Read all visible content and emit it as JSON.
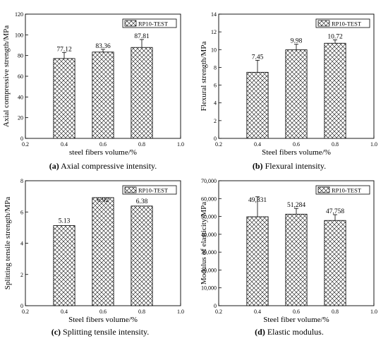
{
  "chart_data": [
    {
      "type": "bar",
      "categories": [
        "0.4",
        "0.6",
        "0.8"
      ],
      "x": [
        0.4,
        0.6,
        0.8
      ],
      "values": [
        77.12,
        83.36,
        87.81
      ],
      "value_labels": [
        "77.12",
        "83.36",
        "87.81"
      ],
      "error_upper": [
        83.0,
        86.0,
        95.5
      ],
      "series": [
        {
          "name": "RP10-TEST",
          "values": [
            77.12,
            83.36,
            87.81
          ]
        }
      ],
      "title": "",
      "xlabel": "steel fibers volume/%",
      "ylabel": "Axial compressive strength/MPa",
      "xlim": [
        0.2,
        1.0
      ],
      "ylim": [
        0,
        120
      ],
      "xticks": [
        "0.2",
        "0.4",
        "0.6",
        "0.8",
        "1.0"
      ],
      "yticks": [
        "0",
        "20",
        "40",
        "60",
        "80",
        "100",
        "120"
      ],
      "legend_position": "top-right",
      "grid": false,
      "caption_letter": "(a)",
      "caption_text": " Axial compressive intensity."
    },
    {
      "type": "bar",
      "categories": [
        "0.4",
        "0.6",
        "0.8"
      ],
      "x": [
        0.4,
        0.6,
        0.8
      ],
      "values": [
        7.45,
        9.98,
        10.72
      ],
      "value_labels": [
        "7.45",
        "9.98",
        "10.72"
      ],
      "error_upper": [
        8.8,
        10.6,
        11.1
      ],
      "series": [
        {
          "name": "RP10-TEST",
          "values": [
            7.45,
            9.98,
            10.72
          ]
        }
      ],
      "title": "",
      "xlabel": "Steel fibers volume/%",
      "ylabel": "Flexural strength/MPa",
      "xlim": [
        0.2,
        1.0
      ],
      "ylim": [
        0,
        14
      ],
      "xticks": [
        "0.2",
        "0.4",
        "0.6",
        "0.8",
        "1.0"
      ],
      "yticks": [
        "0",
        "2",
        "4",
        "6",
        "8",
        "10",
        "12",
        "14"
      ],
      "legend_position": "top-right",
      "grid": false,
      "caption_letter": "(b)",
      "caption_text": " Flexural intensity."
    },
    {
      "type": "bar",
      "categories": [
        "0.4",
        "0.6",
        "0.8"
      ],
      "x": [
        0.4,
        0.6,
        0.8
      ],
      "values": [
        5.13,
        6.92,
        6.38
      ],
      "value_labels": [
        "5.13",
        "6.92",
        "6.38"
      ],
      "error_upper": [
        null,
        null,
        null
      ],
      "series": [
        {
          "name": "RP10-TEST",
          "values": [
            5.13,
            6.92,
            6.38
          ]
        }
      ],
      "title": "",
      "xlabel": "Steel fibers volume/%",
      "ylabel": "Splitting tensile strength/MPa",
      "xlim": [
        0.2,
        1.0
      ],
      "ylim": [
        0,
        8
      ],
      "xticks": [
        "0.2",
        "0.4",
        "0.6",
        "0.8",
        "1.0"
      ],
      "yticks": [
        "0",
        "2",
        "4",
        "6",
        "8"
      ],
      "legend_position": "top-right",
      "grid": false,
      "caption_letter": "(c)",
      "caption_text": " Splitting tensile intensity."
    },
    {
      "type": "bar",
      "categories": [
        "0.4",
        "0.6",
        "0.8"
      ],
      "x": [
        0.4,
        0.6,
        0.8
      ],
      "values": [
        49831,
        51284,
        47758
      ],
      "value_labels": [
        "49,831",
        "51,284",
        "47,758"
      ],
      "error_upper": [
        61000,
        54500,
        51000
      ],
      "series": [
        {
          "name": "RP10-TEST",
          "values": [
            49831,
            51284,
            47758
          ]
        }
      ],
      "title": "",
      "xlabel": "Steel fiber volume/%",
      "ylabel": "Modulus of elasticity/MPa",
      "xlim": [
        0.2,
        1.0
      ],
      "ylim": [
        0,
        70000
      ],
      "xticks": [
        "0.2",
        "0.4",
        "0.6",
        "0.8",
        "1.0"
      ],
      "yticks": [
        "0",
        "10,000",
        "20,000",
        "30,000",
        "40,000",
        "50,000",
        "60,000",
        "70,000"
      ],
      "legend_position": "top-right",
      "grid": false,
      "caption_letter": "(d)",
      "caption_text": " Elastic modulus."
    }
  ]
}
